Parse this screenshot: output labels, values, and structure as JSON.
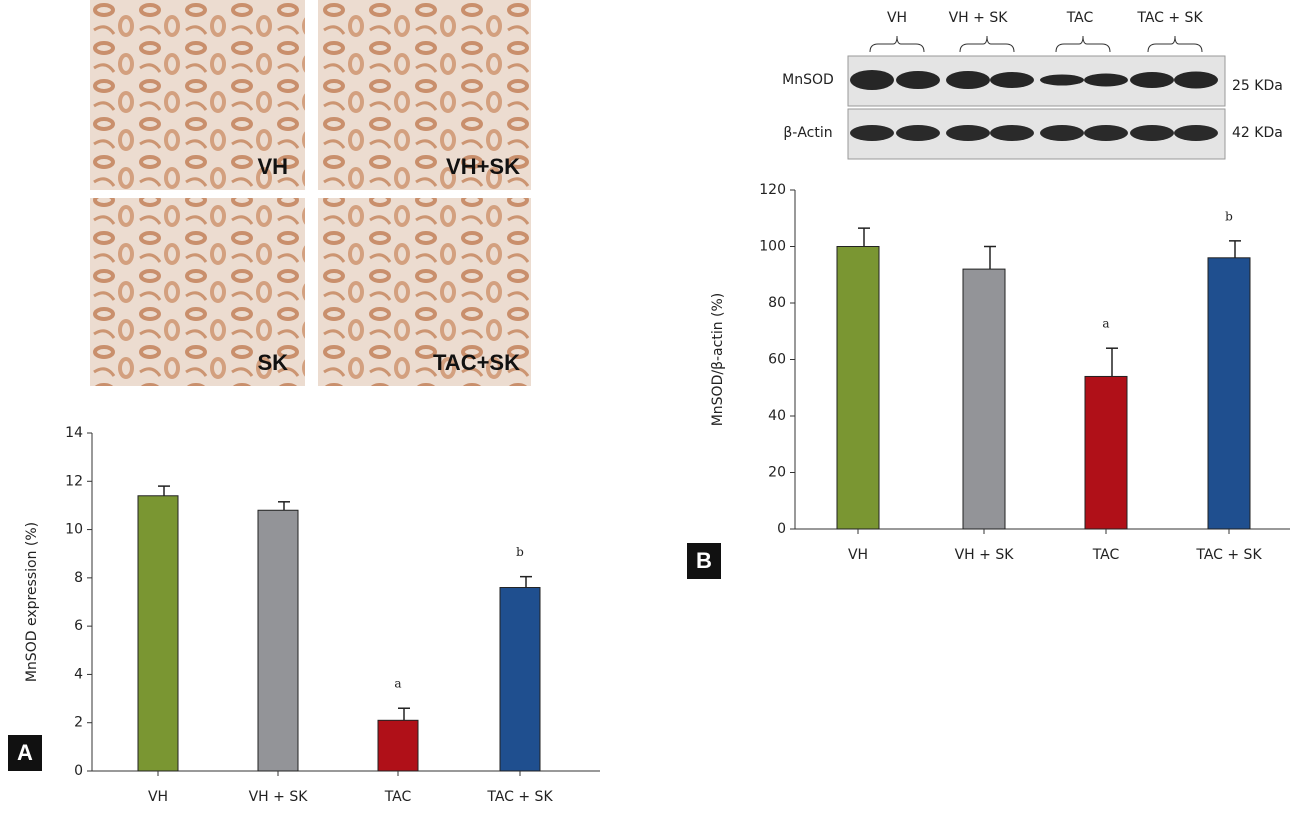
{
  "chart_data": [
    {
      "type": "bar",
      "panel_label": "A",
      "y_label": "MnSOD expression (%)",
      "categories": [
        "VH",
        "VH + SK",
        "TAC",
        "TAC + SK"
      ],
      "values": [
        11.4,
        10.8,
        2.1,
        7.6
      ],
      "errors": [
        0.4,
        0.35,
        0.5,
        0.45
      ],
      "bar_labels": [
        null,
        null,
        "a",
        "b"
      ],
      "colors": [
        "#7a9632",
        "#939498",
        "#b01018",
        "#1f4f8f"
      ],
      "ylim": [
        0,
        14
      ],
      "yticks": [
        0,
        2,
        4,
        6,
        8,
        10,
        12,
        14
      ]
    },
    {
      "type": "bar",
      "panel_label": "B",
      "y_label": "MnSOD/β-actin (%)",
      "categories": [
        "VH",
        "VH + SK",
        "TAC",
        "TAC + SK"
      ],
      "values": [
        100,
        92,
        54,
        96
      ],
      "errors": [
        6.5,
        8,
        10,
        6
      ],
      "bar_labels": [
        null,
        null,
        "a",
        "b"
      ],
      "colors": [
        "#7a9632",
        "#939498",
        "#b01018",
        "#1f4f8f"
      ],
      "ylim": [
        0,
        120
      ],
      "yticks": [
        0,
        20,
        40,
        60,
        80,
        100,
        120
      ]
    }
  ],
  "micrograph_labels": [
    "VH",
    "VH+SK",
    "SK",
    "TAC+SK"
  ],
  "blot": {
    "lanes": [
      "VH",
      "VH + SK",
      "TAC",
      "TAC + SK"
    ],
    "rows": [
      {
        "name": "MnSOD",
        "size": "25 KDa"
      },
      {
        "name": "β-Actin",
        "size": "42 KDa"
      }
    ]
  }
}
